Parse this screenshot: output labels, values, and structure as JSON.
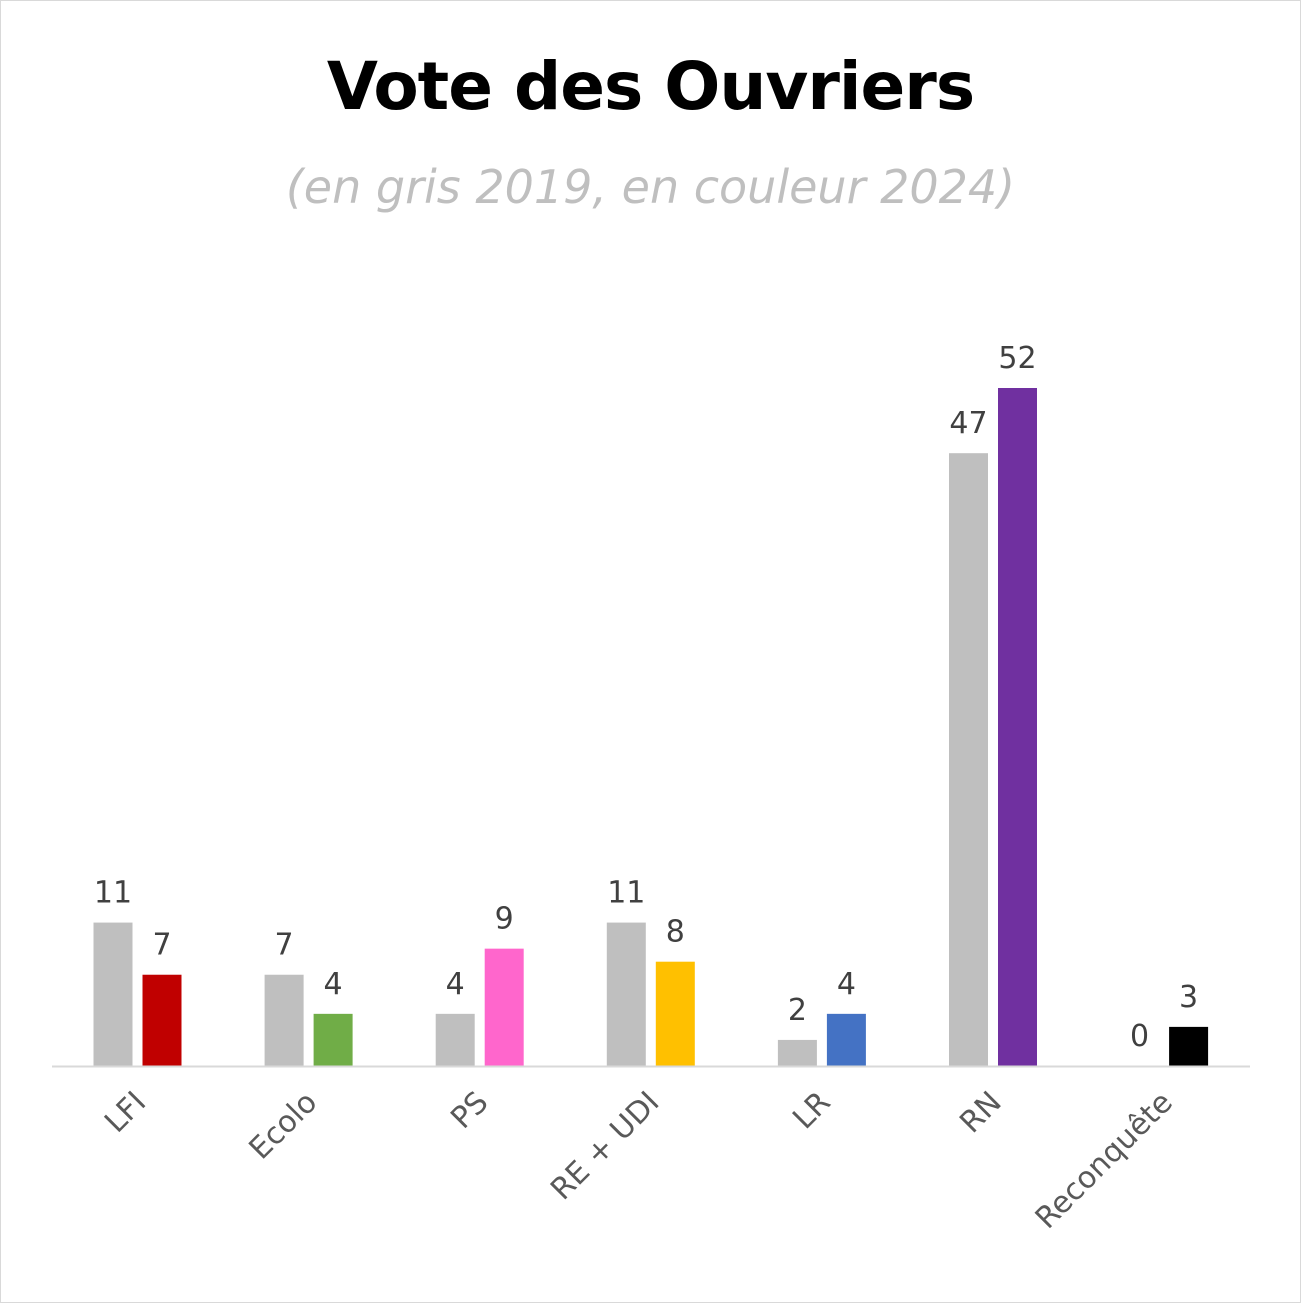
{
  "chart_data": {
    "type": "bar",
    "title": "Vote des Ouvriers",
    "subtitle": "(en gris 2019, en couleur 2024)",
    "categories": [
      "LFI",
      "Ecolo",
      "PS",
      "RE + UDI",
      "LR",
      "RN",
      "Reconquête"
    ],
    "series": [
      {
        "values": [
          11,
          7,
          4,
          11,
          2,
          47,
          0
        ],
        "color": "#bfbfbf"
      },
      {
        "values": [
          7,
          4,
          9,
          8,
          4,
          52,
          3
        ],
        "colors": [
          "#c00000",
          "#70ad47",
          "#ff66cc",
          "#ffc000",
          "#4472c4",
          "#7030a0",
          "#000000"
        ]
      }
    ],
    "ylim": [
      0,
      52
    ],
    "grid": false,
    "legend": "none"
  }
}
